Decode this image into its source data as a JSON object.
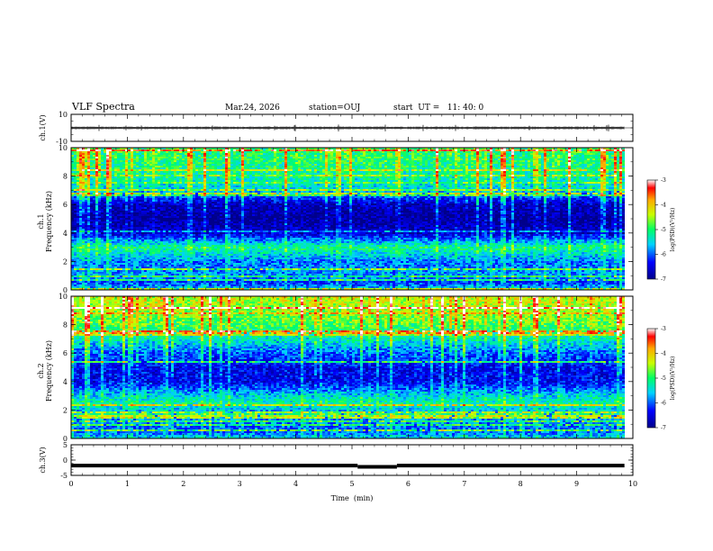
{
  "header": {
    "title": "VLF Spectra",
    "date": "Mar.24, 2026",
    "station": "station=OUJ",
    "start": "start  UT =   11: 40: 0"
  },
  "chart_data": [
    {
      "type": "line",
      "panel": "ch1-waveform",
      "ylabel": "ch.1(V)",
      "ylim": [
        -10,
        10
      ],
      "yticks": [
        "10",
        "-10"
      ],
      "xlim": [
        0,
        10
      ],
      "baseline": 0,
      "noise_band": [
        -1,
        1
      ],
      "color": "#000000"
    },
    {
      "type": "heatmap",
      "panel": "ch1-spectrogram",
      "ylabel": "ch.1\nFrequency (kHz)",
      "ylim": [
        0,
        10
      ],
      "yticks": [
        "0",
        "2",
        "4",
        "6",
        "8",
        "10"
      ],
      "xlim": [
        0,
        9.85
      ],
      "profile_freq_khz": [
        0,
        0.5,
        1,
        2,
        2.6,
        3,
        3.3,
        4,
        5,
        6,
        6.5,
        7,
        8,
        9,
        10
      ],
      "profile_log_psd": [
        -5.4,
        -6.2,
        -5.8,
        -5.9,
        -5.4,
        -5.1,
        -5.6,
        -6.6,
        -6.9,
        -6.7,
        -6.1,
        -5.5,
        -5.2,
        -5.0,
        -4.9
      ],
      "colorbar": {
        "label": "log(PSD)(V²/Hz)",
        "range": [
          -7,
          -3
        ],
        "ticks": [
          "-3",
          "-4",
          "-5",
          "-6",
          "-7"
        ]
      }
    },
    {
      "type": "heatmap",
      "panel": "ch2-spectrogram",
      "ylabel": "ch.2\nFrequency (kHz)",
      "ylim": [
        0,
        10
      ],
      "yticks": [
        "0",
        "2",
        "4",
        "6",
        "8",
        "10"
      ],
      "xlim": [
        0,
        9.85
      ],
      "profile_freq_khz": [
        0,
        0.5,
        1,
        2,
        2.5,
        3,
        3.5,
        4,
        5,
        6,
        7,
        8,
        9,
        10
      ],
      "profile_log_psd": [
        -5.5,
        -6.0,
        -5.9,
        -5.6,
        -5.2,
        -5.5,
        -6.0,
        -6.4,
        -6.4,
        -6.0,
        -5.3,
        -4.8,
        -4.5,
        -4.3
      ],
      "colorbar": {
        "label": "log(PSD)(V²/Hz)",
        "range": [
          -7,
          -3
        ],
        "ticks": [
          "-3",
          "-4",
          "-5",
          "-6",
          "-7"
        ]
      }
    },
    {
      "type": "line",
      "panel": "ch3-trace",
      "ylabel": "ch.3(V)",
      "ylim": [
        -5,
        5
      ],
      "yticks": [
        "5",
        "0",
        "-5"
      ],
      "xlim": [
        0,
        10
      ],
      "segments": [
        {
          "x_start": 0,
          "x_end": 5.1,
          "y": -1.8
        },
        {
          "x_start": 5.1,
          "x_end": 5.8,
          "y": -2.2
        },
        {
          "x_start": 5.8,
          "x_end": 9.85,
          "y": -1.8
        }
      ],
      "xlabel": "Time  (min)",
      "xticks": [
        "0",
        "1",
        "2",
        "3",
        "4",
        "5",
        "6",
        "7",
        "8",
        "9",
        "10"
      ]
    }
  ]
}
